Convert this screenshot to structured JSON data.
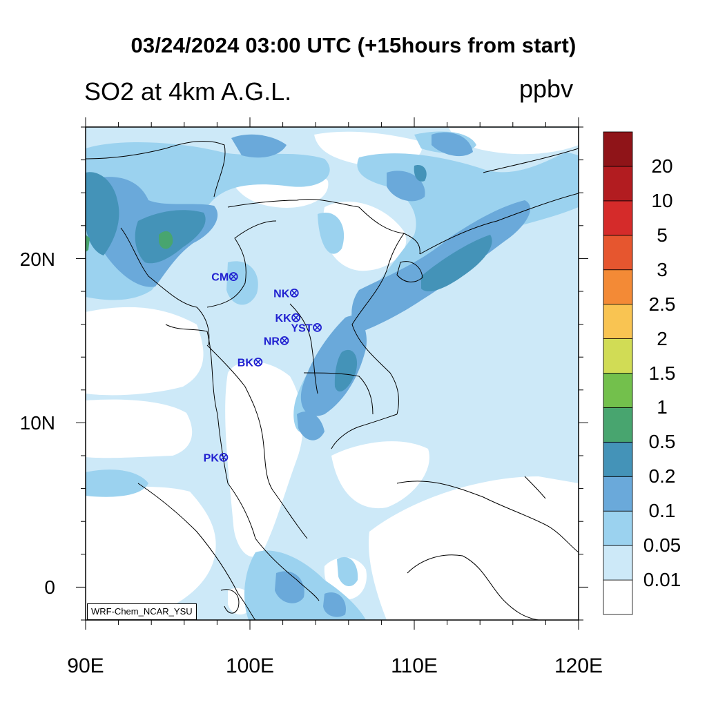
{
  "title": "03/24/2024 03:00 UTC (+15hours from start)",
  "subtitle": "SO2 at 4km A.G.L.",
  "units": "ppbv",
  "credit": "WRF-Chem_NCAR_YSU",
  "axes": {
    "lon_range": [
      90,
      120
    ],
    "lat_range": [
      -2,
      28
    ],
    "x_ticks": [
      {
        "value": 90,
        "label": "90E"
      },
      {
        "value": 100,
        "label": "100E"
      },
      {
        "value": 110,
        "label": "110E"
      },
      {
        "value": 120,
        "label": "120E"
      }
    ],
    "y_ticks": [
      {
        "value": 20,
        "label": "20N"
      },
      {
        "value": 10,
        "label": "10N"
      },
      {
        "value": 0,
        "label": "0"
      }
    ]
  },
  "colorbar": {
    "levels": [
      "0.01",
      "0.05",
      "0.1",
      "0.2",
      "0.5",
      "1",
      "1.5",
      "2",
      "2.5",
      "3",
      "5",
      "10",
      "20"
    ],
    "colors": [
      "#ffffff",
      "#cde9f8",
      "#9bd2ef",
      "#6aa9da",
      "#4493b8",
      "#48a56f",
      "#73c04c",
      "#d1dc55",
      "#f9c452",
      "#f38a36",
      "#e6562f",
      "#d52b2a",
      "#b21c20",
      "#8f1418"
    ]
  },
  "stations": [
    {
      "name": "CM",
      "lon": 99.0,
      "lat": 18.9
    },
    {
      "name": "NK",
      "lon": 102.7,
      "lat": 17.9
    },
    {
      "name": "KK",
      "lon": 102.8,
      "lat": 16.4
    },
    {
      "name": "YST",
      "lon": 104.1,
      "lat": 15.8
    },
    {
      "name": "NR",
      "lon": 102.1,
      "lat": 15.0
    },
    {
      "name": "BK",
      "lon": 100.5,
      "lat": 13.7
    },
    {
      "name": "PK",
      "lon": 98.4,
      "lat": 7.9
    }
  ]
}
